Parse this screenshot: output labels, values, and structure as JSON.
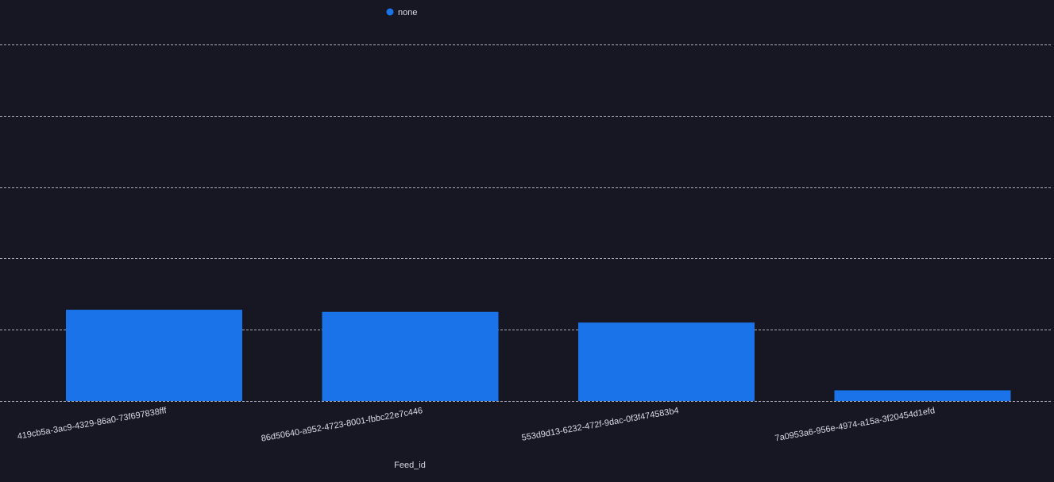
{
  "chart_data": {
    "type": "bar",
    "categories": [
      "419cb5a-3ac9-4329-86a0-73f697838fff",
      "86d50640-a952-4723-8001-fbbc22e7c446",
      "553d9d13-6232-472f-9dac-0f3f474583b4",
      "7a0953a6-956e-4974-a15a-3f20454d1efd"
    ],
    "series": [
      {
        "name": "none",
        "color": "#1a73e8",
        "values": [
          1.28,
          1.25,
          1.1,
          0.15
        ]
      }
    ],
    "xlabel": "Feed_id",
    "ylabel": "",
    "ylim": [
      0,
      5
    ],
    "y_grid_values": [
      0,
      1,
      2,
      3,
      4,
      5
    ],
    "grid": true,
    "grid_style": "dashed",
    "legend_position": "top-center",
    "background": "#161723",
    "text_color": "#d7d9e4",
    "grid_color": "#cfd3e0"
  }
}
